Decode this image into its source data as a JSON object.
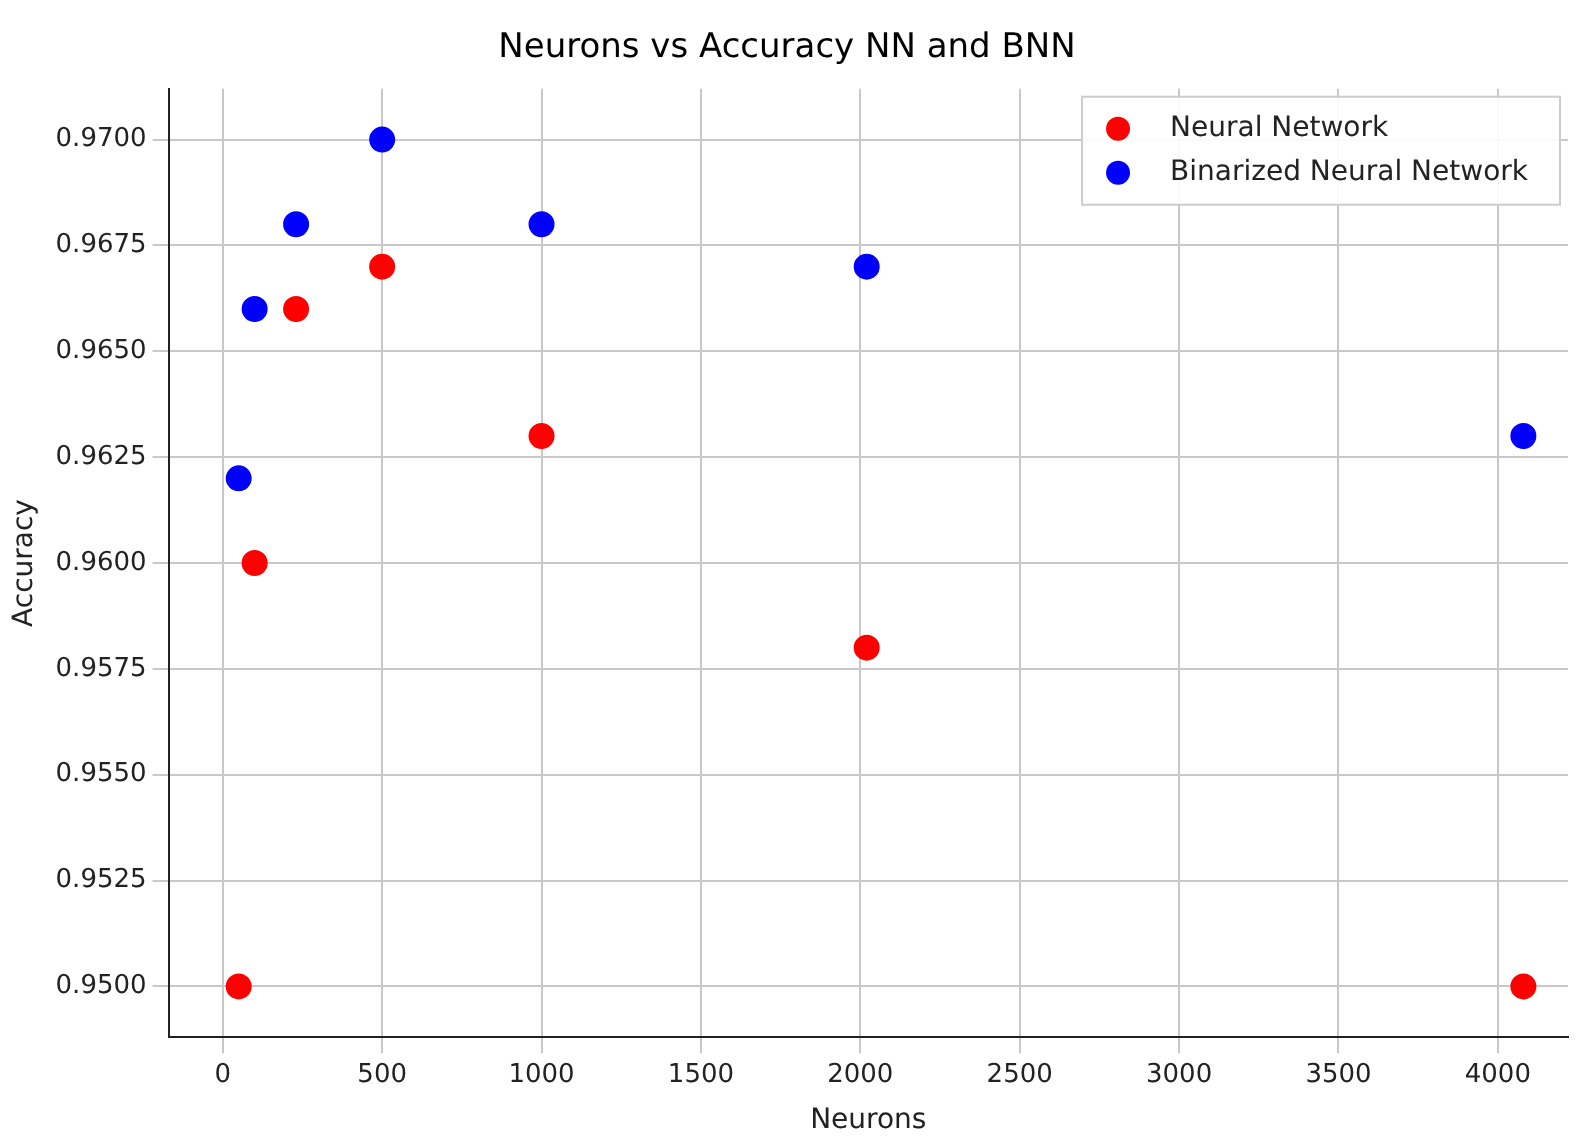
{
  "chart_data": {
    "type": "scatter",
    "title": "Neurons vs Accuracy NN and BNN",
    "xlabel": "Neurons",
    "ylabel": "Accuracy",
    "x": [
      50,
      100,
      230,
      500,
      1000,
      2020,
      4080
    ],
    "series": [
      {
        "name": "Neural Network",
        "color": "#ff0000",
        "values": [
          0.95,
          0.96,
          0.966,
          0.967,
          0.963,
          0.958,
          0.95
        ]
      },
      {
        "name": "Binarized Neural Network",
        "color": "#0000ff",
        "values": [
          0.962,
          0.966,
          0.968,
          0.97,
          0.968,
          0.967,
          0.963
        ]
      }
    ],
    "xlim": [
      -170,
      4220
    ],
    "xticks": [
      0,
      500,
      1000,
      1500,
      2000,
      2500,
      3000,
      3500,
      4000
    ],
    "ylim": [
      0.9488,
      0.9712
    ],
    "yticks": [
      {
        "value": 0.95,
        "label": "0.9500"
      },
      {
        "value": 0.9525,
        "label": "0.9525"
      },
      {
        "value": 0.955,
        "label": "0.9550"
      },
      {
        "value": 0.9575,
        "label": "0.9575"
      },
      {
        "value": 0.96,
        "label": "0.9600"
      },
      {
        "value": 0.9625,
        "label": "0.9625"
      },
      {
        "value": 0.965,
        "label": "0.9650"
      },
      {
        "value": 0.9675,
        "label": "0.9675"
      },
      {
        "value": 0.97,
        "label": "0.9700"
      }
    ],
    "grid": true,
    "legend": "top right",
    "marker": "circle"
  }
}
